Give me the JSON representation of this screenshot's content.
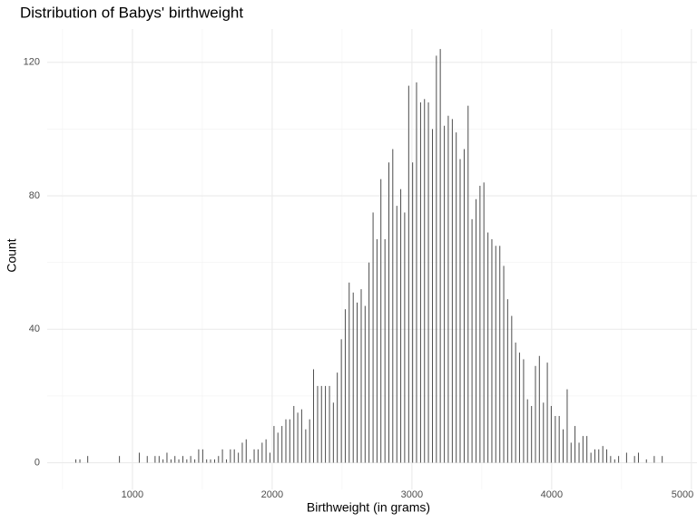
{
  "chart_data": {
    "type": "bar",
    "title": "Distribution of Babys' birthweight",
    "x_label": "Birthweight (in grams)",
    "y_label": "Count",
    "x": [
      595,
      624,
      680,
      907,
      1049,
      1106,
      1162,
      1191,
      1219,
      1247,
      1276,
      1304,
      1332,
      1361,
      1389,
      1417,
      1446,
      1474,
      1503,
      1531,
      1559,
      1588,
      1616,
      1644,
      1673,
      1701,
      1729,
      1758,
      1786,
      1814,
      1843,
      1871,
      1899,
      1928,
      1956,
      1984,
      2013,
      2041,
      2070,
      2098,
      2126,
      2155,
      2183,
      2211,
      2240,
      2268,
      2296,
      2325,
      2353,
      2381,
      2410,
      2438,
      2466,
      2495,
      2523,
      2551,
      2580,
      2608,
      2637,
      2665,
      2693,
      2722,
      2750,
      2778,
      2807,
      2835,
      2863,
      2892,
      2920,
      2948,
      2977,
      3005,
      3033,
      3062,
      3090,
      3118,
      3147,
      3175,
      3203,
      3232,
      3260,
      3289,
      3317,
      3345,
      3374,
      3402,
      3430,
      3459,
      3487,
      3515,
      3544,
      3572,
      3600,
      3629,
      3657,
      3685,
      3714,
      3742,
      3770,
      3799,
      3827,
      3856,
      3884,
      3912,
      3941,
      3969,
      3997,
      4026,
      4054,
      4082,
      4111,
      4139,
      4167,
      4196,
      4224,
      4252,
      4281,
      4309,
      4337,
      4366,
      4394,
      4422,
      4451,
      4479,
      4536,
      4593,
      4621,
      4678,
      4734,
      4791
    ],
    "values": [
      1,
      1,
      2,
      2,
      3,
      2,
      2,
      2,
      1,
      3,
      1,
      2,
      1,
      2,
      1,
      2,
      1,
      4,
      4,
      1,
      1,
      1,
      2,
      4,
      1,
      4,
      4,
      3,
      6,
      7,
      1,
      4,
      4,
      6,
      7,
      3,
      11,
      9,
      11,
      13,
      13,
      17,
      15,
      16,
      10,
      13,
      28,
      23,
      23,
      23,
      23,
      18,
      27,
      37,
      46,
      54,
      51,
      48,
      52,
      47,
      60,
      75,
      67,
      85,
      67,
      90,
      94,
      77,
      82,
      75,
      113,
      90,
      114,
      108,
      109,
      108,
      100,
      122,
      124,
      101,
      104,
      103,
      99,
      91,
      94,
      107,
      73,
      79,
      83,
      84,
      69,
      67,
      65,
      65,
      59,
      49,
      44,
      36,
      33,
      31,
      19,
      17,
      29,
      32,
      18,
      30,
      17,
      14,
      14,
      10,
      22,
      6,
      11,
      6,
      8,
      8,
      3,
      4,
      4,
      5,
      4,
      2,
      1,
      2,
      3,
      2,
      3,
      1,
      2,
      2
    ],
    "color": "#4d4d4d",
    "xlim": [
      390,
      5040
    ],
    "xticks": [
      1000,
      2000,
      3000,
      4000,
      5000
    ],
    "ylim": [
      -8,
      130
    ],
    "yticks": [
      0,
      40,
      80,
      120
    ],
    "grid": true
  }
}
